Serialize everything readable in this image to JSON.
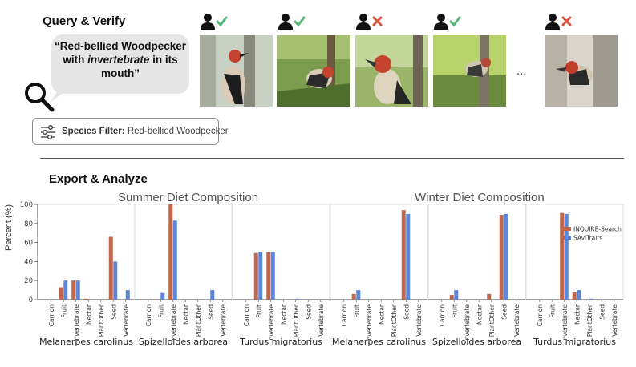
{
  "query": {
    "title": "Query & Verify",
    "quote_prefix": "“Red-bellied Woodpecker with ",
    "quote_emph": "invertebrate",
    "quote_suffix": " in its mouth”",
    "ellipsis": "...",
    "filter_label": "Species Filter:",
    "filter_value": "Red-bellied Woodpecker",
    "verifications": [
      "check",
      "check",
      "cross",
      "check",
      "cross"
    ]
  },
  "export": {
    "title": "Export & Analyze",
    "summer_title": "Summer Diet Composition",
    "winter_title": "Winter Diet Composition"
  },
  "colors": {
    "inquire": "#c0664a",
    "savi": "#5c86da",
    "check": "#55b57a",
    "cross": "#d9533c"
  },
  "chart_data": {
    "type": "bar",
    "ylabel": "Percent (%)",
    "ylim": [
      0,
      100
    ],
    "yticks": [
      0,
      20,
      40,
      60,
      80,
      100
    ],
    "categories": [
      "Carrion",
      "Fruit",
      "Invertebrate",
      "Nectar",
      "PlantOther",
      "Seed",
      "Vertebrate"
    ],
    "legend": [
      "INQUIRE-Search",
      "SAviTraits"
    ],
    "legend_position": "top-right",
    "panels": [
      {
        "season": "Summer",
        "species": "Melanerpes carolinus",
        "series": [
          {
            "name": "INQUIRE-Search",
            "values": [
              0,
              13,
              20,
              1,
              0,
              66,
              0
            ]
          },
          {
            "name": "SAviTraits",
            "values": [
              0,
              20,
              20,
              0,
              0,
              40,
              10
            ]
          }
        ]
      },
      {
        "season": "Summer",
        "species": "Spizelloides arborea",
        "series": [
          {
            "name": "INQUIRE-Search",
            "values": [
              0,
              0,
              100,
              0,
              0,
              0,
              0
            ]
          },
          {
            "name": "SAviTraits",
            "values": [
              0,
              7,
              83,
              0,
              0,
              10,
              0
            ]
          }
        ]
      },
      {
        "season": "Summer",
        "species": "Turdus migratorius",
        "series": [
          {
            "name": "INQUIRE-Search",
            "values": [
              0,
              49,
              50,
              0,
              0,
              0,
              0
            ]
          },
          {
            "name": "SAviTraits",
            "values": [
              0,
              50,
              50,
              0,
              1,
              0,
              0
            ]
          }
        ]
      },
      {
        "season": "Winter",
        "species": "Melanerpes carolinus",
        "series": [
          {
            "name": "INQUIRE-Search",
            "values": [
              0,
              6,
              0,
              0,
              0,
              94,
              0
            ]
          },
          {
            "name": "SAviTraits",
            "values": [
              0,
              10,
              0,
              0,
              0,
              90,
              0
            ]
          }
        ]
      },
      {
        "season": "Winter",
        "species": "Spizelloides arborea",
        "series": [
          {
            "name": "INQUIRE-Search",
            "values": [
              0,
              5,
              0,
              0,
              6,
              89,
              0
            ]
          },
          {
            "name": "SAviTraits",
            "values": [
              0,
              10,
              0,
              0,
              0,
              90,
              0
            ]
          }
        ]
      },
      {
        "season": "Winter",
        "species": "Turdus migratorius",
        "series": [
          {
            "name": "INQUIRE-Search",
            "values": [
              0,
              0,
              91,
              8,
              0,
              0,
              0
            ]
          },
          {
            "name": "SAviTraits",
            "values": [
              0,
              0,
              90,
              10,
              1,
              0,
              0
            ]
          }
        ]
      }
    ]
  }
}
